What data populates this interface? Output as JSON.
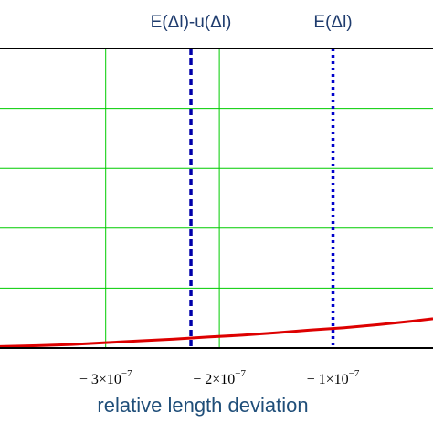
{
  "chart_data": {
    "type": "line",
    "title": "",
    "xlabel": "relative length deviation",
    "ylabel": "",
    "xlim": [
      -3.93e-07,
      -1.2e-08
    ],
    "ylim": [
      0,
      1
    ],
    "grid": true,
    "x_ticks": [
      {
        "value": -3e-07,
        "mantissa": "− 3×10",
        "exponent": "−7"
      },
      {
        "value": -2e-07,
        "mantissa": "− 2×10",
        "exponent": "−7"
      },
      {
        "value": -1e-07,
        "mantissa": "− 1×10",
        "exponent": "−7"
      }
    ],
    "y_gridlines": [
      0.2,
      0.4,
      0.6,
      0.8,
      1.0
    ],
    "series": [
      {
        "name": "",
        "color": "#dd0000",
        "points": [
          [
            -3.93e-07,
            0.005
          ],
          [
            -3.6e-07,
            0.008
          ],
          [
            -3.3e-07,
            0.012
          ],
          [
            -3e-07,
            0.018
          ],
          [
            -2.7e-07,
            0.024
          ],
          [
            -2.4e-07,
            0.03
          ],
          [
            -2.1e-07,
            0.037
          ],
          [
            -1.8e-07,
            0.043
          ],
          [
            -1.5e-07,
            0.051
          ],
          [
            -1.2e-07,
            0.06
          ],
          [
            -9e-08,
            0.068
          ],
          [
            -6e-08,
            0.078
          ],
          [
            -3e-08,
            0.09
          ],
          [
            -1.2e-08,
            0.098
          ]
        ]
      }
    ],
    "markers": [
      {
        "label": "E(Δl)-u(Δl)",
        "x": -2.25e-07,
        "color": "#0000aa",
        "style": "dashed"
      },
      {
        "label": "E(Δl)",
        "x": -1e-07,
        "color": "#0000cc",
        "style": "dotted"
      }
    ],
    "colors": {
      "grid": "#00cc00",
      "axis": "#000000",
      "axis_label": "#1f4e79",
      "tick_label": "#000000"
    }
  }
}
